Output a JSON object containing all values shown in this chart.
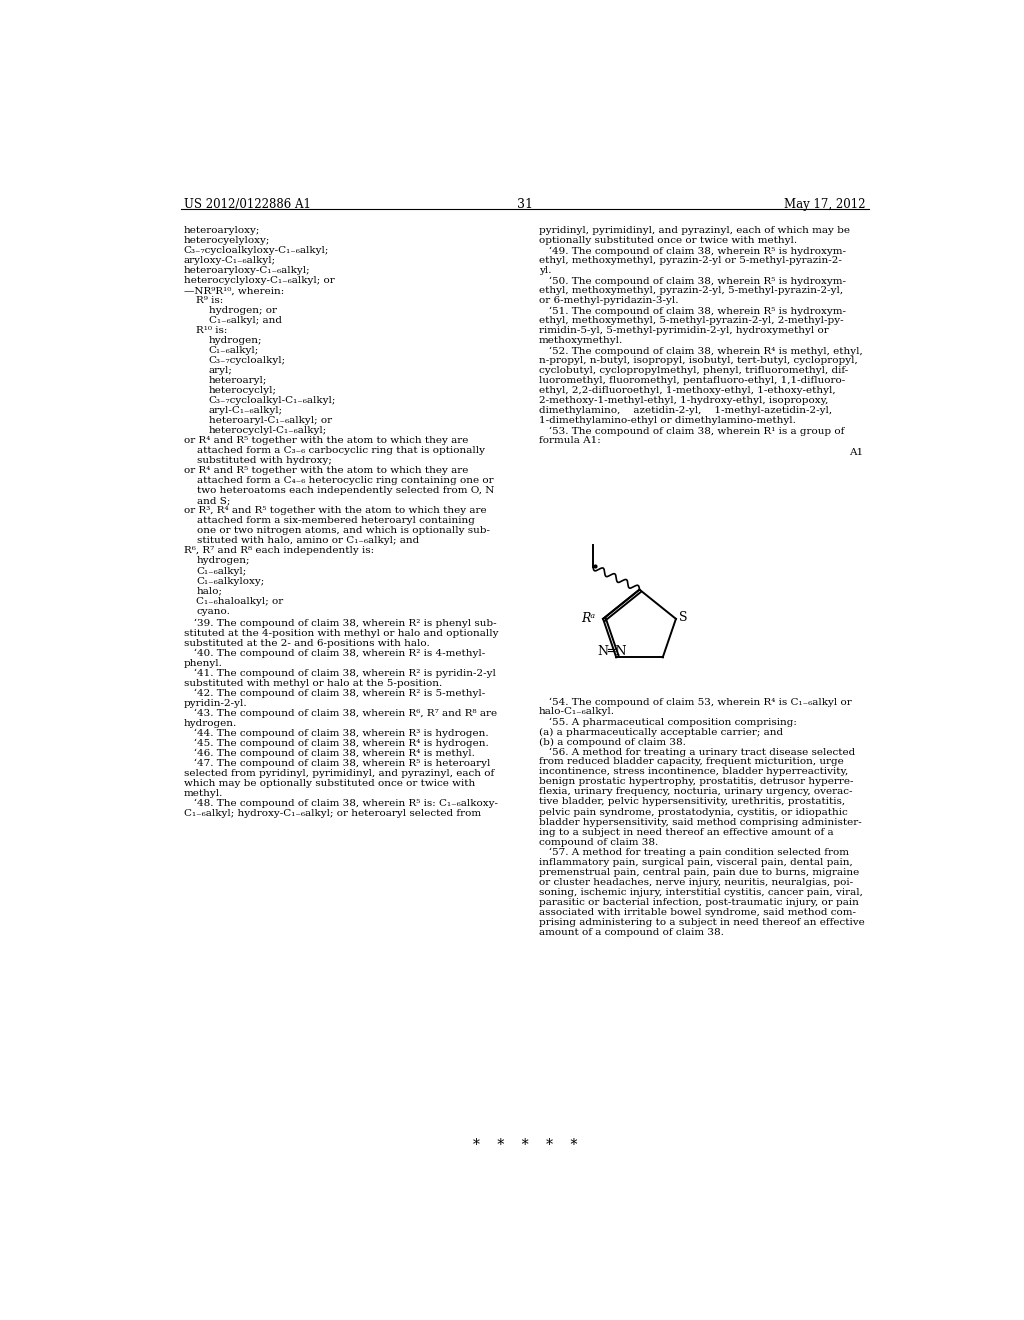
{
  "background_color": "#ffffff",
  "header_left": "US 2012/0122886 A1",
  "header_right": "May 17, 2012",
  "page_number": "31",
  "asterisks": "*    *    *    *    *"
}
